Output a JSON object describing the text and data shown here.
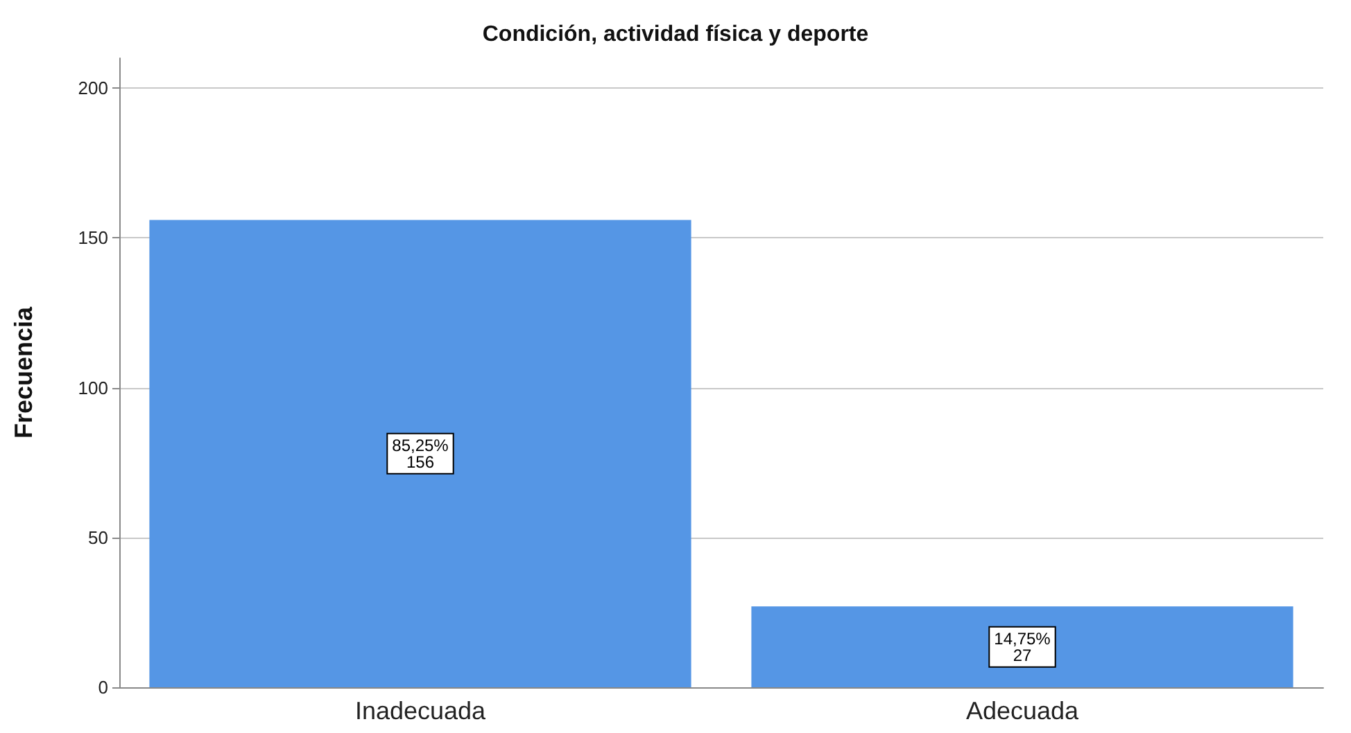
{
  "chart_data": {
    "type": "bar",
    "title": "Condición, actividad física y deporte",
    "ylabel": "Frecuencia",
    "categories": [
      "Inadecuada",
      "Adecuada"
    ],
    "values": [
      156,
      27
    ],
    "color": "#5596e5",
    "value_labels": [
      "85,25%\n156",
      "14,75%\n27"
    ],
    "ylim": [
      0,
      210
    ],
    "yticks": [
      0,
      50,
      100,
      150,
      200
    ],
    "grid": "y"
  }
}
